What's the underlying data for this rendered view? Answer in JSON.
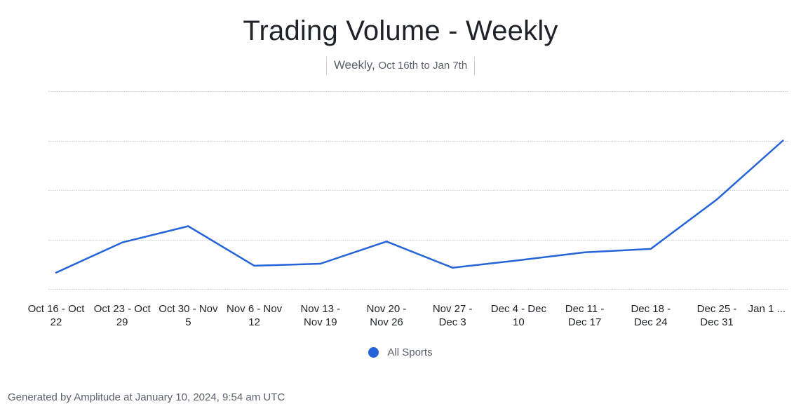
{
  "chart_data": {
    "type": "line",
    "title": "Trading Volume - Weekly",
    "subtitle": {
      "granularity": "Weekly,",
      "range": "Oct 16th to Jan 7th"
    },
    "categories": [
      [
        "Oct 16 - Oct",
        "22"
      ],
      [
        "Oct 23 - Oct",
        "29"
      ],
      [
        "Oct 30 - Nov",
        "5"
      ],
      [
        "Nov 6 - Nov",
        "12"
      ],
      [
        "Nov 13 -",
        "Nov 19"
      ],
      [
        "Nov 20 -",
        "Nov 26"
      ],
      [
        "Nov 27 -",
        "Dec 3"
      ],
      [
        "Dec 4 - Dec",
        "10"
      ],
      [
        "Dec 11 -",
        "Dec 17"
      ],
      [
        "Dec 18 -",
        "Dec 24"
      ],
      [
        "Dec 25 -",
        "Dec 31"
      ],
      [
        "Jan 1 ...",
        ""
      ]
    ],
    "series": [
      {
        "name": "All Sports",
        "color": "#2563d9",
        "values": [
          0.33,
          0.94,
          1.27,
          0.47,
          0.51,
          0.96,
          0.43,
          0.58,
          0.74,
          0.81,
          1.81,
          3.0
        ]
      }
    ],
    "ylim": [
      0,
      4
    ],
    "gridlines": [
      0,
      1,
      2,
      3,
      4
    ],
    "xlabel": "",
    "ylabel": "",
    "legend": "bottom-center",
    "grid": true
  },
  "legend": {
    "label": "All Sports"
  },
  "footer": "Generated by Amplitude at January 10, 2024, 9:54 am UTC",
  "colors": {
    "line": "#2563d9",
    "grid": "#c9ccd1",
    "tick_text": "#1f2329"
  }
}
